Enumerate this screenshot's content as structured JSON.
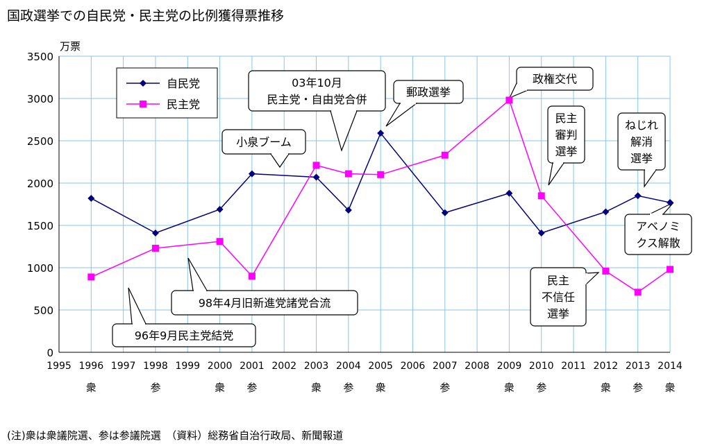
{
  "title": "国政選挙での自民党・民主党の比例獲得票推移",
  "note": "(注)衆は衆議院選、参は参議院選　（資料）総務省自治行政局、新聞報道",
  "chart_data": {
    "type": "line",
    "ylabel": "万票",
    "ylim": [
      0,
      3500
    ],
    "yticks": [
      0,
      500,
      1000,
      1500,
      2000,
      2500,
      3000,
      3500
    ],
    "xlim": [
      1995,
      2014
    ],
    "xticks": [
      1995,
      1996,
      1997,
      1998,
      1999,
      2000,
      2001,
      2002,
      2003,
      2004,
      2005,
      2006,
      2007,
      2008,
      2009,
      2010,
      2011,
      2012,
      2013,
      2014
    ],
    "grid": true,
    "legend_position": "top-left",
    "election_labels": [
      {
        "x": 1996,
        "label": "衆"
      },
      {
        "x": 1998,
        "label": "参"
      },
      {
        "x": 2000,
        "label": "衆"
      },
      {
        "x": 2001,
        "label": "参"
      },
      {
        "x": 2003,
        "label": "衆"
      },
      {
        "x": 2004,
        "label": "参"
      },
      {
        "x": 2005,
        "label": "衆"
      },
      {
        "x": 2007,
        "label": "参"
      },
      {
        "x": 2009,
        "label": "衆"
      },
      {
        "x": 2010,
        "label": "参"
      },
      {
        "x": 2012,
        "label": "衆"
      },
      {
        "x": 2013,
        "label": "参"
      },
      {
        "x": 2014,
        "label": "衆"
      }
    ],
    "series": [
      {
        "name": "自民党",
        "color": "#000080",
        "marker": "diamond",
        "x": [
          1996,
          1998,
          2000,
          2001,
          2003,
          2004,
          2005,
          2007,
          2009,
          2010,
          2012,
          2013,
          2014
        ],
        "y": [
          1820,
          1410,
          1690,
          2110,
          2070,
          1680,
          2590,
          1650,
          1880,
          1410,
          1660,
          1850,
          1770
        ]
      },
      {
        "name": "民主党",
        "color": "#ff00ff",
        "marker": "square",
        "x": [
          1996,
          1998,
          2000,
          2001,
          2003,
          2004,
          2005,
          2007,
          2009,
          2010,
          2012,
          2013,
          2014
        ],
        "y": [
          890,
          1230,
          1310,
          900,
          2210,
          2110,
          2100,
          2330,
          2980,
          1850,
          960,
          710,
          980
        ]
      }
    ],
    "annotations": [
      {
        "lines": [
          "小泉ブーム"
        ]
      },
      {
        "lines": [
          "03年10月",
          "民主党・自由党合併"
        ]
      },
      {
        "lines": [
          "郵政選挙"
        ]
      },
      {
        "lines": [
          "政権交代"
        ]
      },
      {
        "lines": [
          "民主",
          "審判",
          "選挙"
        ]
      },
      {
        "lines": [
          "ねじれ",
          "解消",
          "選挙"
        ]
      },
      {
        "lines": [
          "アベノミ",
          "クス解散"
        ]
      },
      {
        "lines": [
          "民主",
          "不信任",
          "選挙"
        ]
      },
      {
        "lines": [
          "98年4月旧新進党諸党合流"
        ]
      },
      {
        "lines": [
          "96年9月民主党結党"
        ]
      }
    ]
  }
}
